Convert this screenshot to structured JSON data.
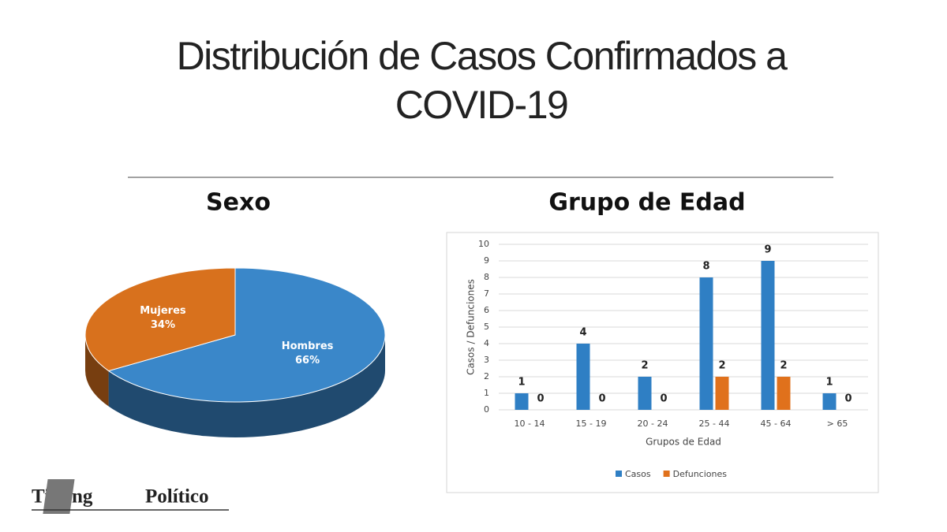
{
  "title": "Distribución de Casos Confirmados a COVID-19",
  "chart_data": [
    {
      "type": "pie",
      "title": "Sexo",
      "categories": [
        "Hombres",
        "Mujeres"
      ],
      "values": [
        66,
        34
      ],
      "value_labels": [
        "66%",
        "34%"
      ],
      "colors": [
        "#3a87c9",
        "#d8711d"
      ]
    },
    {
      "type": "bar",
      "title": "Grupo de Edad",
      "categories": [
        "10 - 14",
        "15 - 19",
        "20 - 24",
        "25 - 44",
        "45 - 64",
        "> 65"
      ],
      "series": [
        {
          "name": "Casos",
          "color": "#2f7fc4",
          "values": [
            1,
            4,
            2,
            8,
            9,
            1
          ]
        },
        {
          "name": "Defunciones",
          "color": "#e0711c",
          "values": [
            0,
            0,
            0,
            2,
            2,
            0
          ]
        }
      ],
      "ylim": [
        0,
        10
      ],
      "yticks": [
        0,
        1,
        2,
        3,
        4,
        5,
        6,
        7,
        8,
        9,
        10
      ],
      "grid": true,
      "xlabel": "Grupos de Edad",
      "ylabel": "Casos / Defunciones",
      "legend": "bottom"
    }
  ],
  "logo": {
    "left": "Timing",
    "right": "Político"
  }
}
